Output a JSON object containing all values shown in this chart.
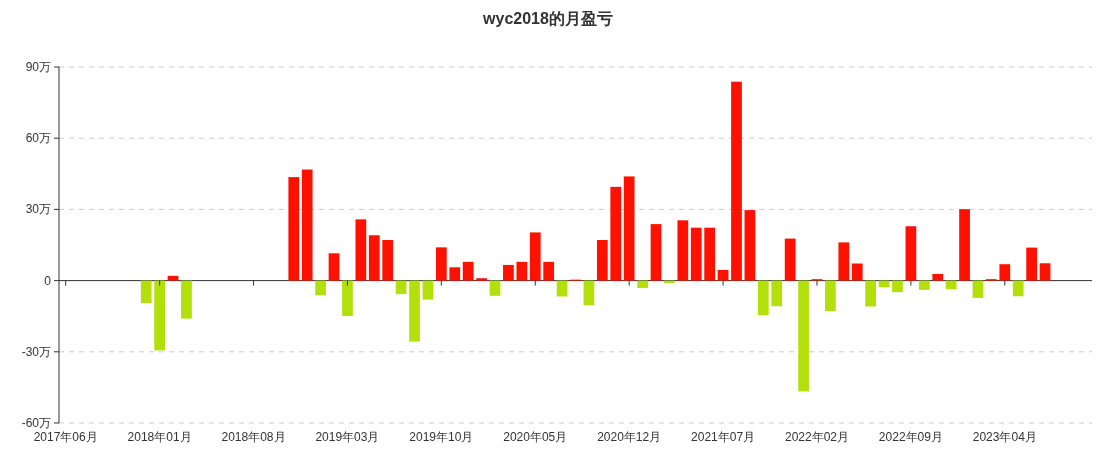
{
  "chart_data": {
    "type": "bar",
    "title": "wyc2018的月盈亏",
    "categories": [
      "2017年06月",
      null,
      null,
      null,
      null,
      null,
      null,
      "2018年01月",
      null,
      null,
      null,
      null,
      null,
      null,
      "2018年08月",
      null,
      null,
      null,
      null,
      null,
      null,
      "2019年03月",
      null,
      null,
      null,
      null,
      null,
      null,
      "2019年10月",
      null,
      null,
      null,
      null,
      null,
      null,
      "2020年05月",
      null,
      null,
      null,
      null,
      null,
      null,
      "2020年12月",
      null,
      null,
      null,
      null,
      null,
      null,
      "2021年07月",
      null,
      null,
      null,
      null,
      null,
      null,
      "2022年02月",
      null,
      null,
      null,
      null,
      null,
      null,
      "2022年09月",
      null,
      null,
      null,
      null,
      null,
      null,
      "2023年04月",
      null,
      null,
      null,
      null,
      null,
      null
    ],
    "values": [
      null,
      null,
      null,
      null,
      null,
      null,
      -9.5,
      -29.4,
      2.0,
      -16.0,
      null,
      null,
      null,
      null,
      null,
      null,
      null,
      43.6,
      46.8,
      -6.2,
      11.5,
      -14.9,
      25.8,
      19.1,
      17.1,
      -5.7,
      -25.7,
      -8.0,
      14.0,
      5.6,
      7.9,
      1.0,
      -6.4,
      6.6,
      7.9,
      20.3,
      7.9,
      -6.7,
      0.4,
      -10.4,
      17.1,
      39.5,
      43.9,
      -3.1,
      23.8,
      -1.1,
      25.4,
      22.3,
      22.3,
      4.5,
      83.8,
      29.7,
      -14.6,
      -10.8,
      17.7,
      -46.7,
      0.6,
      -12.9,
      16.1,
      7.2,
      -10.9,
      -2.8,
      -4.9,
      22.9,
      -3.9,
      2.8,
      -3.6,
      30.1,
      -7.3,
      0.6,
      6.9,
      -6.6,
      13.9,
      7.3,
      null,
      null,
      null
    ],
    "colors": [
      null,
      null,
      null,
      null,
      null,
      null,
      "#b3e00b",
      "#b3e00b",
      "#ff1100",
      "#b3e00b",
      null,
      null,
      null,
      null,
      null,
      null,
      null,
      "#ff1100",
      "#ff1100",
      "#b3e00b",
      "#ff1100",
      "#b3e00b",
      "#ff1100",
      "#ff1100",
      "#ff1100",
      "#b3e00b",
      "#b3e00b",
      "#b3e00b",
      "#ff1100",
      "#ff1100",
      "#ff1100",
      "#ff1100",
      "#b3e00b",
      "#ff1100",
      "#ff1100",
      "#ff1100",
      "#ff1100",
      "#b3e00b",
      "#ff1100",
      "#b3e00b",
      "#ff1100",
      "#ff1100",
      "#ff1100",
      "#b3e00b",
      "#ff1100",
      "#b3e00b",
      "#ff1100",
      "#ff1100",
      "#ff1100",
      "#ff1100",
      "#ff1100",
      "#ff1100",
      "#b3e00b",
      "#b3e00b",
      "#ff1100",
      "#b3e00b",
      "#ff1100",
      "#b3e00b",
      "#ff1100",
      "#ff1100",
      "#b3e00b",
      "#b3e00b",
      "#b3e00b",
      "#ff1100",
      "#b3e00b",
      "#ff1100",
      "#b3e00b",
      "#ff1100",
      "#b3e00b",
      "#ff1100",
      "#ff1100",
      "#b3e00b",
      "#ff1100",
      "#ff1100",
      null,
      null,
      null
    ],
    "ylim": [
      -60,
      90
    ],
    "yticks": [
      {
        "value": -60,
        "label": "-60万"
      },
      {
        "value": -30,
        "label": "-30万"
      },
      0,
      {
        "value": 30,
        "label": "30万"
      },
      {
        "value": 60,
        "label": "60万"
      },
      {
        "value": 90,
        "label": "90万"
      }
    ],
    "grid": "y"
  }
}
